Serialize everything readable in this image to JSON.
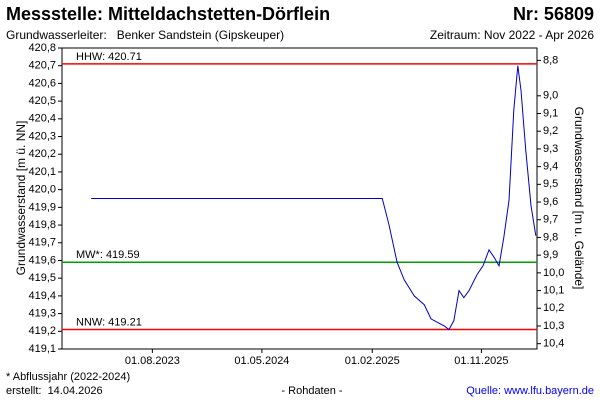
{
  "chart_data": {
    "type": "line",
    "title": "Messstelle: Mitteldachstetten-Dörflein",
    "station_number": "Nr: 56809",
    "subtitle": "Grundwasserleiter:   Benker Sandstein (Gipskeuper)",
    "period": "Zeitraum: Nov 2022 - Apr 2026",
    "ylabel": "Grundwasserstand [m ü. NN]",
    "y2label": "Grundwasserstand [m u. Gelände]",
    "footnote": "* Abflussjahr (2022-2024)",
    "created": "erstellt:  14.04.2026",
    "data_note": "- Rohdaten -",
    "source": "Quelle: www.lfu.bayern.de",
    "xlim": [
      "2022-12-18",
      "2026-03-20"
    ],
    "xticks": [
      {
        "value": "2023-08-01",
        "label": "01.08.2023"
      },
      {
        "value": "2024-05-01",
        "label": "01.05.2024"
      },
      {
        "value": "2025-02-01",
        "label": "01.02.2025"
      },
      {
        "value": "2025-11-01",
        "label": "01.11.2025"
      }
    ],
    "ylim": [
      419.1,
      420.8
    ],
    "yticks": [
      {
        "value": 419.1,
        "label": "419,1"
      },
      {
        "value": 419.2,
        "label": "419,2"
      },
      {
        "value": 419.3,
        "label": "419,3"
      },
      {
        "value": 419.4,
        "label": "419,4"
      },
      {
        "value": 419.5,
        "label": "419,5"
      },
      {
        "value": 419.6,
        "label": "419,6"
      },
      {
        "value": 419.7,
        "label": "419,7"
      },
      {
        "value": 419.8,
        "label": "419,8"
      },
      {
        "value": 419.9,
        "label": "419,9"
      },
      {
        "value": 420.0,
        "label": "420,0"
      },
      {
        "value": 420.1,
        "label": "420,1"
      },
      {
        "value": 420.2,
        "label": "420,2"
      },
      {
        "value": 420.3,
        "label": "420,3"
      },
      {
        "value": 420.4,
        "label": "420,4"
      },
      {
        "value": 420.5,
        "label": "420,5"
      },
      {
        "value": 420.6,
        "label": "420,6"
      },
      {
        "value": 420.7,
        "label": "420,7"
      },
      {
        "value": 420.8,
        "label": "420,8"
      }
    ],
    "y2lim": [
      10.43,
      8.73
    ],
    "y2ticks": [
      {
        "value": 8.8,
        "label": "8,8"
      },
      {
        "value": 9.0,
        "label": "9,0"
      },
      {
        "value": 9.1,
        "label": "9,1"
      },
      {
        "value": 9.2,
        "label": "9,2"
      },
      {
        "value": 9.3,
        "label": "9,3"
      },
      {
        "value": 9.4,
        "label": "9,4"
      },
      {
        "value": 9.5,
        "label": "9,5"
      },
      {
        "value": 9.6,
        "label": "9,6"
      },
      {
        "value": 9.7,
        "label": "9,7"
      },
      {
        "value": 9.8,
        "label": "9,8"
      },
      {
        "value": 9.9,
        "label": "9,9"
      },
      {
        "value": 10.0,
        "label": "10,0"
      },
      {
        "value": 10.1,
        "label": "10,1"
      },
      {
        "value": 10.2,
        "label": "10,2"
      },
      {
        "value": 10.3,
        "label": "10,3"
      },
      {
        "value": 10.4,
        "label": "10,4"
      }
    ],
    "reference_lines": [
      {
        "label": "HHW: 420.71",
        "value": 420.71,
        "color": "#ff0000"
      },
      {
        "label": "MW*: 419.59",
        "value": 419.59,
        "color": "#00a000"
      },
      {
        "label": "NNW: 419.21",
        "value": 419.21,
        "color": "#ff0000"
      }
    ],
    "series": [
      {
        "color": "#0000c0",
        "x": [
          "2023-03-01",
          "2025-02-26",
          "2025-03-15",
          "2025-04-04",
          "2025-04-22",
          "2025-05-17",
          "2025-06-11",
          "2025-06-28",
          "2025-07-31",
          "2025-08-12",
          "2025-08-24",
          "2025-09-06",
          "2025-09-18",
          "2025-10-01",
          "2025-10-21",
          "2025-11-05",
          "2025-11-20",
          "2025-12-02",
          "2025-12-15",
          "2025-12-27",
          "2026-01-09",
          "2026-01-21",
          "2026-01-31",
          "2026-02-08",
          "2026-02-20",
          "2026-03-05",
          "2026-03-17"
        ],
        "values": [
          419.95,
          419.95,
          419.8,
          419.59,
          419.49,
          419.4,
          419.35,
          419.27,
          419.23,
          419.21,
          419.26,
          419.43,
          419.39,
          419.43,
          419.52,
          419.57,
          419.66,
          419.62,
          419.57,
          419.73,
          419.94,
          420.45,
          420.7,
          420.56,
          420.22,
          419.91,
          419.74
        ]
      }
    ]
  }
}
